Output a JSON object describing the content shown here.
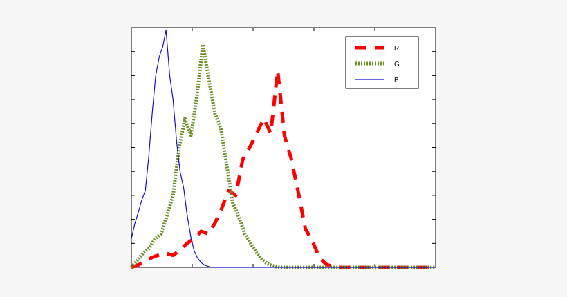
{
  "chart_data": {
    "type": "line",
    "title": "",
    "xlabel": "",
    "ylabel": "",
    "xlim": [
      0,
      1
    ],
    "ylim": [
      0,
      1
    ],
    "grid": false,
    "legend": {
      "position": "top-right"
    },
    "series": [
      {
        "name": "R",
        "color": "#ff0000",
        "style": "dashed-thick",
        "x": [
          0.0,
          0.023,
          0.046,
          0.069,
          0.092,
          0.114,
          0.137,
          0.16,
          0.183,
          0.206,
          0.229,
          0.252,
          0.275,
          0.298,
          0.32,
          0.343,
          0.366,
          0.389,
          0.412,
          0.435,
          0.458,
          0.481,
          0.503,
          0.526,
          0.549,
          0.572,
          0.595,
          0.618,
          0.641,
          0.664,
          0.686,
          0.709,
          0.732,
          0.755,
          0.778,
          0.801,
          0.824,
          0.847,
          0.87,
          0.892,
          0.915,
          0.938,
          0.961,
          1.0
        ],
        "y": [
          0.0,
          0.01,
          0.026,
          0.042,
          0.052,
          0.058,
          0.05,
          0.072,
          0.1,
          0.12,
          0.15,
          0.14,
          0.185,
          0.25,
          0.32,
          0.3,
          0.45,
          0.5,
          0.56,
          0.62,
          0.56,
          0.82,
          0.55,
          0.45,
          0.31,
          0.16,
          0.11,
          0.04,
          0.012,
          0.003,
          0.0,
          0.0,
          0.0,
          0.0,
          0.0,
          0.0,
          0.0,
          0.0,
          0.0,
          0.0,
          0.0,
          0.0,
          0.0,
          0.0
        ]
      },
      {
        "name": "G",
        "color": "#6b8e23",
        "style": "dotted-thick",
        "x": [
          0.0,
          0.02,
          0.039,
          0.059,
          0.078,
          0.098,
          0.118,
          0.137,
          0.157,
          0.176,
          0.196,
          0.216,
          0.235,
          0.255,
          0.275,
          0.294,
          0.314,
          0.333,
          0.353,
          0.373,
          0.392,
          0.412,
          0.431,
          0.451,
          0.471,
          0.49,
          0.51,
          0.529,
          0.549,
          0.569,
          0.588,
          0.608,
          0.627,
          1.0
        ],
        "y": [
          0.0,
          0.03,
          0.06,
          0.08,
          0.12,
          0.14,
          0.22,
          0.3,
          0.5,
          0.62,
          0.55,
          0.72,
          0.93,
          0.78,
          0.64,
          0.58,
          0.42,
          0.27,
          0.21,
          0.14,
          0.1,
          0.06,
          0.03,
          0.012,
          0.004,
          0.0,
          0.0,
          0.0,
          0.0,
          0.0,
          0.0,
          0.0,
          0.0,
          0.0
        ]
      },
      {
        "name": "B",
        "color": "#1010d0",
        "style": "solid-thin",
        "x": [
          0.0,
          0.011,
          0.023,
          0.034,
          0.046,
          0.057,
          0.069,
          0.08,
          0.092,
          0.103,
          0.114,
          0.126,
          0.137,
          0.149,
          0.16,
          0.172,
          0.183,
          0.195,
          0.206,
          0.217,
          0.229,
          0.24,
          0.252,
          0.263,
          0.275,
          0.286,
          0.298,
          0.309,
          0.32,
          0.332,
          0.343,
          0.355,
          0.366,
          0.378,
          0.389,
          1.0
        ],
        "y": [
          0.12,
          0.18,
          0.23,
          0.28,
          0.32,
          0.46,
          0.65,
          0.8,
          0.88,
          0.92,
          0.99,
          0.8,
          0.7,
          0.52,
          0.4,
          0.33,
          0.22,
          0.13,
          0.07,
          0.04,
          0.02,
          0.01,
          0.004,
          0.0,
          0.0,
          0.0,
          0.0,
          0.0,
          0.0,
          0.0,
          0.0,
          0.0,
          0.0,
          0.0,
          0.0,
          0.0
        ]
      }
    ]
  }
}
